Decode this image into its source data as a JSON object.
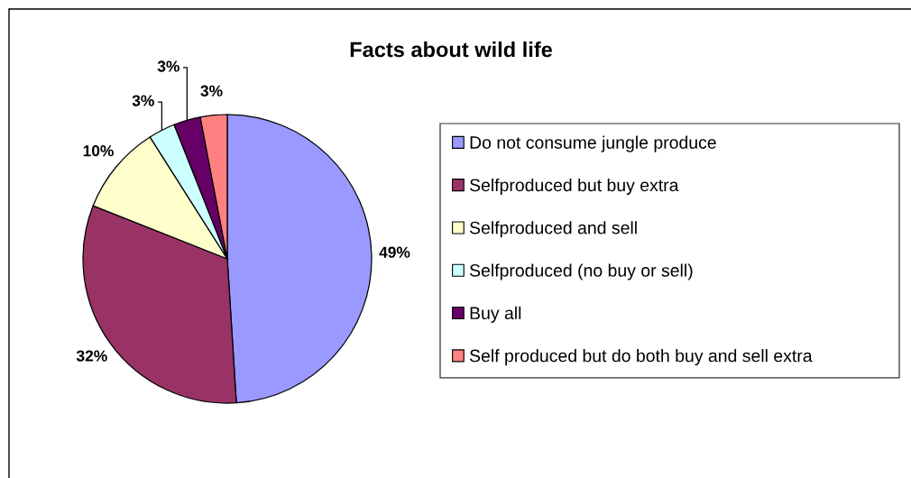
{
  "chart_data": {
    "type": "pie",
    "title": "Facts about wild life",
    "categories": [
      "Do not consume jungle produce",
      "Selfproduced but buy extra",
      "Selfproduced and sell",
      "Selfproduced (no buy or sell)",
      "Buy all",
      "Self produced but do both buy and sell extra"
    ],
    "values": [
      49,
      32,
      10,
      3,
      3,
      3
    ],
    "colors": [
      "#9999ff",
      "#993366",
      "#ffffcc",
      "#ccffff",
      "#660066",
      "#ff8080"
    ],
    "value_labels": [
      "49%",
      "32%",
      "10%",
      "3%",
      "3%",
      "3%"
    ],
    "legend": "right"
  }
}
